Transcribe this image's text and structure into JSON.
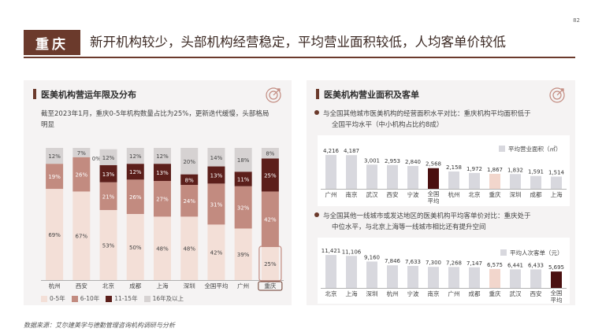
{
  "page_number": "82",
  "header": {
    "tag": "重庆",
    "title": "新开机构较少，头部机构经营稳定，平均营业面积较低，人均客单价较低"
  },
  "left_panel": {
    "title": "医美机构营运年限及分布",
    "note_line1": "截至2023年1月，重庆0-5年机构数量占比为25%，更新迭代缓慢，头部格局",
    "note_line2": "明显"
  },
  "right_panel": {
    "title": "医美机构营业面积及客单",
    "note1_line1": "与全国其他城市医美机构的经营面积水平对比：重庆机构平均面积低于",
    "note1_line2": "全国平均水平（中小机构占比约8成）",
    "note2_line1": "与全国其他一线城市或发达地区的医美机构平均客单价对比：重庆处于",
    "note2_line2": "中位水平，与北京上海等一线城市相比还有提升空间"
  },
  "source": "数据来源：艾尔建美学与德勤管理咨询机构调研与分析",
  "colors": {
    "brand": "#6b3a2c",
    "c0_5": "#f3dfd7",
    "c6_10": "#c28b80",
    "c11_15": "#5c1f1b",
    "c16": "#d6d2d2",
    "bar_gray": "#d8d8de",
    "bar_highlight": "#f2d6cc",
    "bar_national": "#4a1010"
  },
  "chart_data": [
    {
      "type": "bar",
      "stacked": true,
      "title": "医美机构营运年限及分布",
      "categories": [
        "杭州",
        "西安",
        "北京",
        "成都",
        "上海",
        "深圳",
        "全国平均",
        "广州",
        "重庆"
      ],
      "series": [
        {
          "name": "0-5年",
          "color": "#f3dfd7",
          "values": [
            69,
            67,
            53,
            50,
            48,
            48,
            42,
            39,
            25
          ],
          "labels": [
            "69%",
            "67%",
            "53%",
            "50%",
            "48%",
            "48%",
            "42%",
            "39%",
            "25%"
          ]
        },
        {
          "name": "6-10年",
          "color": "#c28b80",
          "values": [
            19,
            26,
            21,
            26,
            27,
            24,
            31,
            32,
            42
          ],
          "labels": [
            "19%",
            "26%",
            "21%",
            "26%",
            "27%",
            "24%",
            "31%",
            "32%",
            "42%"
          ]
        },
        {
          "name": "11-15年",
          "color": "#5c1f1b",
          "values": [
            0,
            0,
            13,
            12,
            13,
            8,
            13,
            11,
            25
          ],
          "labels": [
            "0%",
            "0%",
            "13%",
            "12%",
            "13%",
            "8%",
            "13%",
            "11%",
            "25%"
          ]
        },
        {
          "name": "16年及以上",
          "color": "#d6d2d2",
          "values": [
            12,
            7,
            12,
            12,
            12,
            20,
            14,
            18,
            8
          ],
          "labels": [
            "12%",
            "7%",
            "12%",
            "12%",
            "12%",
            "20%",
            "14%",
            "18%",
            "8%"
          ]
        }
      ],
      "extra_label": {
        "category": "西安",
        "text": "0%"
      },
      "highlight": "重庆",
      "ylim": [
        0,
        100
      ]
    },
    {
      "type": "bar",
      "title": "平均营业面积（㎡）",
      "categories": [
        "广州",
        "南京",
        "武汉",
        "西安",
        "宁波",
        "全国平均",
        "杭州",
        "北京",
        "重庆",
        "深圳",
        "成都",
        "上海"
      ],
      "values": [
        4216,
        4187,
        3001,
        2953,
        2840,
        2568,
        2158,
        1972,
        1867,
        1832,
        1591,
        1514
      ],
      "labels": [
        "4,216",
        "4,187",
        "3,001",
        "2,953",
        "2,840",
        "2,568",
        "2,158",
        "1,972",
        "1,867",
        "1,832",
        "1,591",
        "1,514"
      ],
      "highlight": "重庆",
      "national": "全国平均",
      "ylim": [
        0,
        4500
      ]
    },
    {
      "type": "bar",
      "title": "平均人次客单（元）",
      "categories": [
        "北京",
        "上海",
        "深圳",
        "杭州",
        "宁波",
        "南京",
        "广州",
        "成都",
        "重庆",
        "武汉",
        "西安",
        "全国平均"
      ],
      "values": [
        11421,
        11106,
        9160,
        7846,
        7633,
        7300,
        7268,
        7147,
        6575,
        6441,
        6433,
        5695
      ],
      "labels": [
        "11,421",
        "11,106",
        "9,160",
        "7,846",
        "7,633",
        "7,300",
        "7,268",
        "7,147",
        "6,575",
        "6,441",
        "6,433",
        "5,695"
      ],
      "highlight": "重庆",
      "national": "全国平均",
      "ylim": [
        0,
        12000
      ]
    }
  ]
}
